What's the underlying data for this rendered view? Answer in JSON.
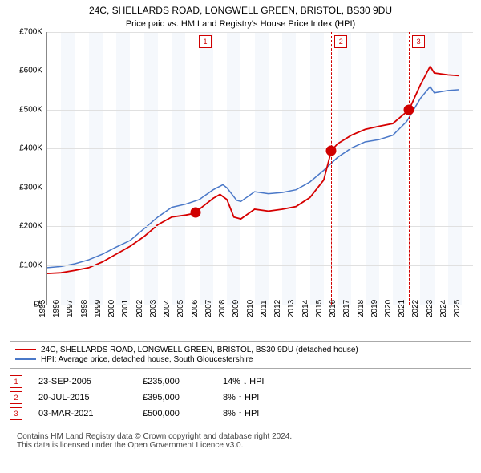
{
  "title": "24C, SHELLARDS ROAD, LONGWELL GREEN, BRISTOL, BS30 9DU",
  "subtitle": "Price paid vs. HM Land Registry's House Price Index (HPI)",
  "chart": {
    "type": "line",
    "x_min": 1995,
    "x_max": 2025.8,
    "y_min": 0,
    "y_max": 700000,
    "y_ticks": [
      0,
      100000,
      200000,
      300000,
      400000,
      500000,
      600000,
      700000
    ],
    "y_tick_labels": [
      "£0",
      "£100K",
      "£200K",
      "£300K",
      "£400K",
      "£500K",
      "£600K",
      "£700K"
    ],
    "x_ticks": [
      1995,
      1996,
      1997,
      1998,
      1999,
      2000,
      2001,
      2002,
      2003,
      2004,
      2005,
      2006,
      2007,
      2008,
      2009,
      2010,
      2011,
      2012,
      2013,
      2014,
      2015,
      2016,
      2017,
      2018,
      2019,
      2020,
      2021,
      2022,
      2023,
      2024,
      2025
    ],
    "grid_color": "#e0e0e0",
    "bg": "#ffffff",
    "band_color": "#f5f8fc",
    "series": {
      "red": {
        "label": "24C, SHELLARDS ROAD, LONGWELL GREEN, BRISTOL, BS30 9DU (detached house)",
        "color": "#d60000",
        "width": 1.8,
        "points": [
          [
            1995,
            80000
          ],
          [
            1996,
            82000
          ],
          [
            1997,
            88000
          ],
          [
            1998,
            95000
          ],
          [
            1999,
            110000
          ],
          [
            2000,
            130000
          ],
          [
            2001,
            150000
          ],
          [
            2002,
            175000
          ],
          [
            2003,
            205000
          ],
          [
            2004,
            225000
          ],
          [
            2005,
            230000
          ],
          [
            2005.73,
            235000
          ],
          [
            2006,
            245000
          ],
          [
            2007,
            273000
          ],
          [
            2007.5,
            283000
          ],
          [
            2008,
            270000
          ],
          [
            2008.5,
            225000
          ],
          [
            2009,
            220000
          ],
          [
            2010,
            245000
          ],
          [
            2011,
            240000
          ],
          [
            2012,
            245000
          ],
          [
            2013,
            252000
          ],
          [
            2014,
            275000
          ],
          [
            2015,
            320000
          ],
          [
            2015.55,
            395000
          ],
          [
            2016,
            413000
          ],
          [
            2017,
            435000
          ],
          [
            2018,
            450000
          ],
          [
            2019,
            458000
          ],
          [
            2020,
            465000
          ],
          [
            2021.17,
            500000
          ],
          [
            2022,
            565000
          ],
          [
            2022.7,
            612000
          ],
          [
            2023,
            595000
          ],
          [
            2024,
            590000
          ],
          [
            2024.8,
            588000
          ]
        ]
      },
      "blue": {
        "label": "HPI: Average price, detached house, South Gloucestershire",
        "color": "#4a78c8",
        "width": 1.5,
        "points": [
          [
            1995,
            95000
          ],
          [
            1996,
            98000
          ],
          [
            1997,
            105000
          ],
          [
            1998,
            115000
          ],
          [
            1999,
            130000
          ],
          [
            2000,
            148000
          ],
          [
            2001,
            165000
          ],
          [
            2002,
            195000
          ],
          [
            2003,
            225000
          ],
          [
            2004,
            250000
          ],
          [
            2005,
            258000
          ],
          [
            2006,
            270000
          ],
          [
            2007,
            295000
          ],
          [
            2007.7,
            308000
          ],
          [
            2008,
            300000
          ],
          [
            2008.7,
            268000
          ],
          [
            2009,
            265000
          ],
          [
            2010,
            290000
          ],
          [
            2011,
            285000
          ],
          [
            2012,
            288000
          ],
          [
            2013,
            295000
          ],
          [
            2014,
            315000
          ],
          [
            2015,
            345000
          ],
          [
            2016,
            378000
          ],
          [
            2017,
            402000
          ],
          [
            2018,
            418000
          ],
          [
            2019,
            424000
          ],
          [
            2020,
            435000
          ],
          [
            2021,
            470000
          ],
          [
            2022,
            530000
          ],
          [
            2022.7,
            560000
          ],
          [
            2023,
            544000
          ],
          [
            2024,
            550000
          ],
          [
            2024.8,
            552000
          ]
        ]
      }
    },
    "sale_markers": [
      {
        "n": "1",
        "x": 2005.73,
        "y": 235000
      },
      {
        "n": "2",
        "x": 2015.55,
        "y": 395000
      },
      {
        "n": "3",
        "x": 2021.17,
        "y": 500000
      }
    ]
  },
  "legend": {
    "rows": [
      {
        "color": "#d60000",
        "text": "24C, SHELLARDS ROAD, LONGWELL GREEN, BRISTOL, BS30 9DU (detached house)"
      },
      {
        "color": "#4a78c8",
        "text": "HPI: Average price, detached house, South Gloucestershire"
      }
    ]
  },
  "sales_table": [
    {
      "n": "1",
      "date": "23-SEP-2005",
      "price": "£235,000",
      "pct": "14%",
      "dir": "↓",
      "suffix": "HPI"
    },
    {
      "n": "2",
      "date": "20-JUL-2015",
      "price": "£395,000",
      "pct": "8%",
      "dir": "↑",
      "suffix": "HPI"
    },
    {
      "n": "3",
      "date": "03-MAR-2021",
      "price": "£500,000",
      "pct": "8%",
      "dir": "↑",
      "suffix": "HPI"
    }
  ],
  "footer": {
    "line1": "Contains HM Land Registry data © Crown copyright and database right 2024.",
    "line2": "This data is licensed under the Open Government Licence v3.0."
  }
}
